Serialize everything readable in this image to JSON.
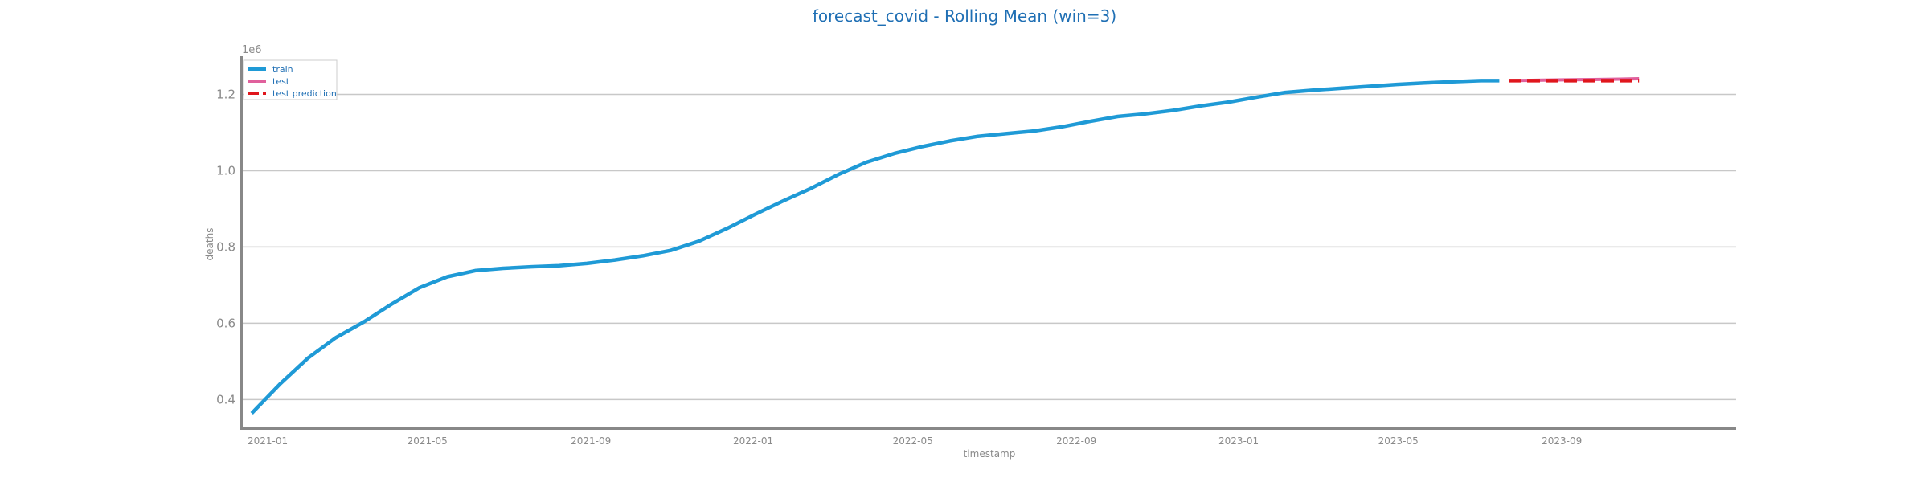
{
  "chart_data": {
    "type": "line",
    "title": "forecast_covid - Rolling Mean (win=3)",
    "xlabel": "timestamp",
    "ylabel": "deaths",
    "y_offset_label": "1e6",
    "ylim": [
      0.325,
      1.3
    ],
    "xlim": [
      "2020-12-12",
      "2024-01-10"
    ],
    "x_ticks": [
      "2021-01",
      "2021-05",
      "2021-09",
      "2022-01",
      "2022-05",
      "2022-09",
      "2023-01",
      "2023-05",
      "2023-09"
    ],
    "y_ticks": [
      0.4,
      0.6,
      0.8,
      1.0,
      1.2
    ],
    "grid": "horizontal",
    "legend_placement": "top-left",
    "colors": {
      "title": "#1f6fb4",
      "train": "#1f9ad6",
      "test": "#e0609c",
      "test_prediction": "#e0161c",
      "grid": "#c8c8c8",
      "axis": "#888888",
      "tick_text": "#8a8a8a",
      "legend_text": "#1f6fb4"
    },
    "series": [
      {
        "name": "train",
        "style": "solid",
        "x": [
          "2020-12-20",
          "2021-01-10",
          "2021-01-31",
          "2021-02-21",
          "2021-03-14",
          "2021-04-04",
          "2021-04-25",
          "2021-05-16",
          "2021-06-06",
          "2021-06-27",
          "2021-07-18",
          "2021-08-08",
          "2021-08-29",
          "2021-09-19",
          "2021-10-10",
          "2021-10-31",
          "2021-11-21",
          "2021-12-12",
          "2022-01-02",
          "2022-01-23",
          "2022-02-13",
          "2022-03-06",
          "2022-03-27",
          "2022-04-17",
          "2022-05-08",
          "2022-05-29",
          "2022-06-19",
          "2022-07-10",
          "2022-07-31",
          "2022-08-21",
          "2022-09-11",
          "2022-10-02",
          "2022-10-23",
          "2022-11-13",
          "2022-12-04",
          "2022-12-25",
          "2023-01-15",
          "2023-02-05",
          "2023-02-26",
          "2023-03-19",
          "2023-04-09",
          "2023-04-30",
          "2023-05-21",
          "2023-06-11",
          "2023-07-02",
          "2023-07-16"
        ],
        "values": [
          0.364,
          0.44,
          0.508,
          0.562,
          0.603,
          0.65,
          0.693,
          0.722,
          0.738,
          0.744,
          0.748,
          0.751,
          0.757,
          0.766,
          0.777,
          0.791,
          0.815,
          0.848,
          0.885,
          0.92,
          0.953,
          0.99,
          1.022,
          1.045,
          1.063,
          1.078,
          1.09,
          1.097,
          1.104,
          1.115,
          1.129,
          1.142,
          1.149,
          1.158,
          1.17,
          1.18,
          1.193,
          1.205,
          1.211,
          1.216,
          1.221,
          1.226,
          1.23,
          1.233,
          1.236,
          1.236
        ]
      },
      {
        "name": "test",
        "style": "solid",
        "x": [
          "2023-07-23",
          "2023-08-13",
          "2023-09-03",
          "2023-09-24",
          "2023-10-15",
          "2023-10-29"
        ],
        "values": [
          1.236,
          1.237,
          1.238,
          1.239,
          1.24,
          1.241
        ]
      },
      {
        "name": "test prediction",
        "style": "dashed",
        "x": [
          "2023-07-23",
          "2023-10-29"
        ],
        "values": [
          1.236,
          1.236
        ]
      }
    ]
  }
}
